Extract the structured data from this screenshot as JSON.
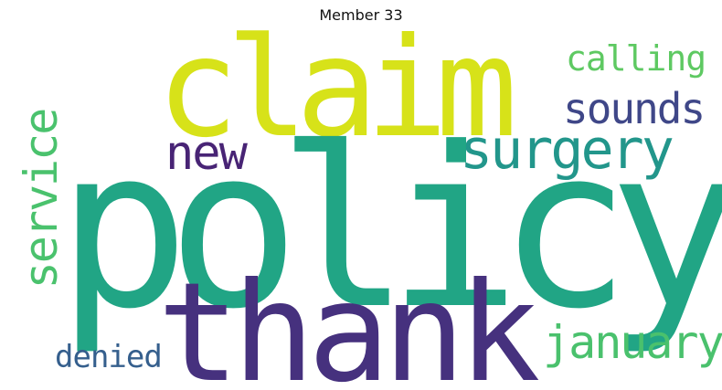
{
  "title": "Member 33",
  "words": [
    {
      "text": "policy",
      "color": "#21a585"
    },
    {
      "text": "thank",
      "color": "#46317e"
    },
    {
      "text": "claim",
      "color": "#d7e219"
    },
    {
      "text": "surgery",
      "color": "#22968b"
    },
    {
      "text": "service",
      "color": "#4ac26d"
    },
    {
      "text": "new",
      "color": "#482475"
    },
    {
      "text": "sounds",
      "color": "#3f4788"
    },
    {
      "text": "calling",
      "color": "#5ec962"
    },
    {
      "text": "january",
      "color": "#4ac16d"
    },
    {
      "text": "denied",
      "color": "#355f8d"
    }
  ]
}
